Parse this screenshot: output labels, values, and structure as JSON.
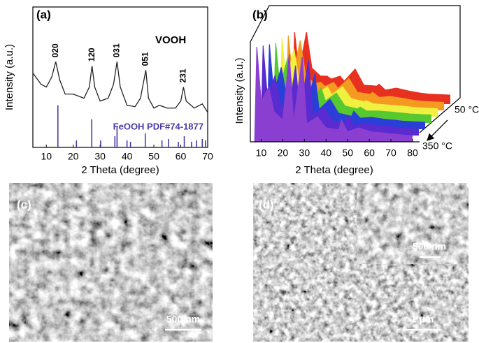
{
  "chart_data": [
    {
      "type": "line",
      "panel_label": "(a)",
      "sample_label": "VOOH",
      "y_label": "Intensity (a.u.)",
      "x_label": "2 Theta (degree)",
      "x": [
        5,
        8,
        10,
        12,
        13.5,
        15,
        17,
        20,
        24,
        26,
        27,
        28,
        30,
        33,
        35,
        36.3,
        37.5,
        40,
        43,
        45,
        47,
        48,
        50,
        52,
        55,
        58,
        60,
        61,
        62,
        65,
        68,
        70
      ],
      "series": [
        {
          "color": "#222222",
          "values": [
            53,
            45,
            43,
            50,
            61,
            48,
            38,
            38,
            35,
            43,
            58,
            43,
            33,
            35,
            45,
            61,
            43,
            30,
            29,
            35,
            55,
            35,
            28,
            30,
            28,
            28,
            33,
            43,
            33,
            28,
            31,
            25
          ]
        }
      ],
      "peak_labels": [
        {
          "label": "020",
          "x": 13.5
        },
        {
          "label": "120",
          "x": 27
        },
        {
          "label": "031",
          "x": 36.3
        },
        {
          "label": "051",
          "x": 47
        },
        {
          "label": "231",
          "x": 61
        }
      ],
      "reference": {
        "name": "FeOOH PDF#74-1877",
        "color": "#4a3aa8",
        "x": [
          14.3,
          21.2,
          26.9,
          30.2,
          35.5,
          36.3,
          40.0,
          41.3,
          46.8,
          53.0,
          55.4,
          59.1,
          61.3,
          64.0,
          65.8,
          68.0,
          69.2
        ],
        "values": [
          30,
          5,
          20,
          5,
          8,
          15,
          5,
          4,
          10,
          5,
          6,
          4,
          8,
          4,
          5,
          6,
          5
        ]
      },
      "xlim": [
        5,
        70
      ],
      "xticks": [
        10,
        20,
        30,
        40,
        50,
        60,
        70
      ],
      "ylim": [
        0,
        100
      ]
    },
    {
      "type": "waterfall",
      "panel_label": "(b)",
      "y_label": "Intensity (a.u.)",
      "x_label": "2 Theta (degree)",
      "z_labels": [
        "50 °C",
        "350 °C"
      ],
      "x": [
        7,
        8,
        10,
        13.5,
        16,
        20,
        23,
        25,
        29,
        31,
        36,
        40,
        46,
        47,
        50,
        55,
        61,
        66,
        70,
        80
      ],
      "series": [
        {
          "color": "#8a3fd0",
          "values": [
            0,
            95,
            40,
            55,
            30,
            22,
            88,
            20,
            85,
            18,
            25,
            14,
            12,
            22,
            10,
            14,
            10,
            9,
            8,
            6
          ]
        },
        {
          "color": "#5a2bd0",
          "values": [
            0,
            90,
            38,
            60,
            30,
            24,
            70,
            22,
            75,
            20,
            28,
            15,
            12,
            20,
            10,
            12,
            10,
            9,
            8,
            6
          ]
        },
        {
          "color": "#2a3fd8",
          "values": [
            0,
            85,
            36,
            62,
            32,
            24,
            50,
            22,
            55,
            20,
            30,
            16,
            13,
            18,
            11,
            12,
            10,
            9,
            8,
            7
          ]
        },
        {
          "color": "#58c830",
          "values": [
            0,
            80,
            35,
            65,
            33,
            25,
            30,
            23,
            35,
            22,
            30,
            17,
            14,
            16,
            12,
            12,
            11,
            10,
            9,
            8
          ]
        },
        {
          "color": "#f0f040",
          "values": [
            0,
            78,
            34,
            68,
            34,
            26,
            28,
            24,
            30,
            22,
            30,
            18,
            15,
            16,
            13,
            12,
            11,
            10,
            9,
            8
          ]
        },
        {
          "color": "#f59a20",
          "values": [
            0,
            75,
            33,
            70,
            35,
            27,
            28,
            24,
            28,
            22,
            32,
            18,
            16,
            18,
            13,
            14,
            12,
            10,
            9,
            8
          ]
        },
        {
          "color": "#e83020",
          "values": [
            0,
            72,
            32,
            72,
            36,
            28,
            28,
            25,
            28,
            23,
            35,
            19,
            18,
            20,
            14,
            16,
            13,
            11,
            10,
            9
          ]
        }
      ],
      "xlim": [
        5,
        80
      ],
      "xticks": [
        10,
        20,
        30,
        40,
        50,
        60,
        70,
        80
      ],
      "ylim": [
        0,
        100
      ]
    }
  ],
  "images": [
    {
      "panel_label": "(c)",
      "scale_bar": "500 nm"
    },
    {
      "panel_label": "(d)",
      "scale_bar": "1 μm",
      "inset_scale_bar": "500 nm"
    }
  ]
}
